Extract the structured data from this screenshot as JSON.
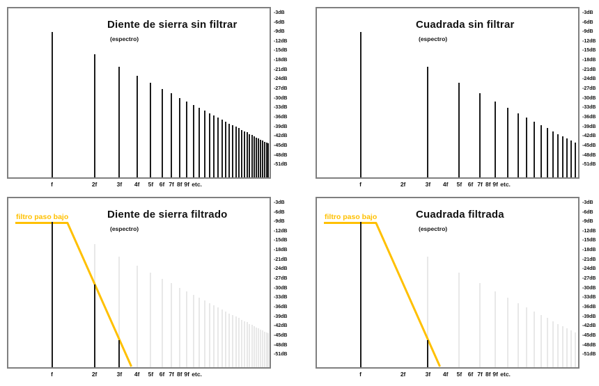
{
  "colors": {
    "harmonic_line": "#1a1a1a",
    "ghost_line": "#e8e8e8",
    "plot_border": "#7f7f7f",
    "filter_accent": "#FFC000"
  },
  "chart_data": {
    "type": "bar",
    "description_visible_text_only": true,
    "y_axis": {
      "unit": "dB",
      "tick_labels": [
        "-3dB",
        "-6dB",
        "-9dB",
        "-12dB",
        "-15dB",
        "-18dB",
        "-21dB",
        "-24dB",
        "-27dB",
        "-30dB",
        "-33dB",
        "-36dB",
        "-39dB",
        "-42dB",
        "-45dB",
        "-48dB",
        "-51dB"
      ],
      "tick_step_db": -3,
      "range_db": [
        -1.5,
        -54.9
      ]
    },
    "x_axis": {
      "scale": "log",
      "tick_labels": [
        "f",
        "2f",
        "3f",
        "4f",
        "5f",
        "6f",
        "7f",
        "8f",
        "9f",
        "etc."
      ],
      "tick_harmonics": [
        1,
        2,
        3,
        4,
        5,
        6,
        7,
        8,
        9
      ]
    },
    "charts": [
      {
        "id": "sawtooth-unfiltered",
        "title": "Diente de sierra sin filtrar",
        "subtitle": "(espectro)",
        "harmonics": "all",
        "n": [
          1,
          2,
          3,
          4,
          5,
          6,
          7,
          8,
          9,
          10,
          11,
          12,
          13,
          14,
          15,
          16,
          17,
          18,
          19,
          20,
          21,
          22,
          23,
          24,
          25,
          26,
          27,
          28,
          29,
          30,
          31,
          32,
          33,
          34
        ],
        "unfiltered_db": [
          -9.0,
          -15.9,
          -20.0,
          -22.8,
          -25.1,
          -26.9,
          -28.4,
          -29.8,
          -30.9,
          -32.0,
          -33.0,
          -33.8,
          -34.6,
          -35.4,
          -36.1,
          -36.7,
          -37.3,
          -37.9,
          -38.4,
          -38.9,
          -39.4,
          -39.9,
          -40.3,
          -40.7,
          -41.2,
          -41.5,
          -41.9,
          -42.3,
          -42.6,
          -43.0,
          -43.3,
          -43.6,
          -43.9,
          -44.2
        ],
        "show_ghost": false,
        "filter": null
      },
      {
        "id": "square-unfiltered",
        "title": "Cuadrada sin filtrar",
        "subtitle": "(espectro)",
        "harmonics": "odd",
        "n": [
          1,
          3,
          5,
          7,
          9,
          11,
          13,
          15,
          17,
          19,
          21,
          23,
          25,
          27,
          29,
          31,
          33
        ],
        "unfiltered_db": [
          -9.0,
          -20.0,
          -25.1,
          -28.4,
          -30.9,
          -33.0,
          -34.6,
          -36.1,
          -37.3,
          -38.4,
          -39.4,
          -40.3,
          -41.2,
          -41.9,
          -42.6,
          -43.3,
          -43.9
        ],
        "show_ghost": false,
        "filter": null
      },
      {
        "id": "sawtooth-filtered",
        "title": "Diente de sierra filtrado",
        "subtitle": "(espectro)",
        "harmonics": "all",
        "n": [
          1,
          2,
          3,
          4,
          5,
          6,
          7,
          8,
          9,
          10,
          11,
          12,
          13,
          14,
          15,
          16,
          17,
          18,
          19,
          20,
          21,
          22,
          23,
          24,
          25,
          26,
          27,
          28,
          29,
          30,
          31,
          32,
          33,
          34
        ],
        "unfiltered_db": [
          -9.0,
          -15.9,
          -20.0,
          -22.8,
          -25.1,
          -26.9,
          -28.4,
          -29.8,
          -30.9,
          -32.0,
          -33.0,
          -33.8,
          -34.6,
          -35.4,
          -36.1,
          -36.7,
          -37.3,
          -37.9,
          -38.4,
          -38.9,
          -39.4,
          -39.9,
          -40.3,
          -40.7,
          -41.2,
          -41.5,
          -41.9,
          -42.3,
          -42.6,
          -43.0,
          -43.3,
          -43.6,
          -43.9,
          -44.2
        ],
        "passed_db": [
          -9.0,
          -28.8,
          -46.3,
          null,
          null,
          null,
          null,
          null,
          null,
          null,
          null,
          null,
          null,
          null,
          null,
          null,
          null,
          null,
          null,
          null,
          null,
          null,
          null,
          null,
          null,
          null,
          null,
          null,
          null,
          null,
          null,
          null,
          null,
          null
        ],
        "show_ghost": true,
        "filter": {
          "label": "filtro paso bajo",
          "color": "#FFC000",
          "passband_db": -9.3,
          "knee_harmonic": 1.29,
          "floor_harmonic": 3.65
        }
      },
      {
        "id": "square-filtered",
        "title": "Cuadrada filtrada",
        "subtitle": "(espectro)",
        "harmonics": "odd",
        "n": [
          1,
          3,
          5,
          7,
          9,
          11,
          13,
          15,
          17,
          19,
          21,
          23,
          25,
          27,
          29,
          31,
          33
        ],
        "unfiltered_db": [
          -9.0,
          -20.0,
          -25.1,
          -28.4,
          -30.9,
          -33.0,
          -34.6,
          -36.1,
          -37.3,
          -38.4,
          -39.4,
          -40.3,
          -41.2,
          -41.9,
          -42.6,
          -43.3,
          -43.9
        ],
        "passed_db": [
          -9.0,
          -46.3,
          null,
          null,
          null,
          null,
          null,
          null,
          null,
          null,
          null,
          null,
          null,
          null,
          null,
          null,
          null
        ],
        "show_ghost": true,
        "filter": {
          "label": "filtro paso bajo",
          "color": "#FFC000",
          "passband_db": -9.3,
          "knee_harmonic": 1.29,
          "floor_harmonic": 3.65
        }
      }
    ]
  }
}
